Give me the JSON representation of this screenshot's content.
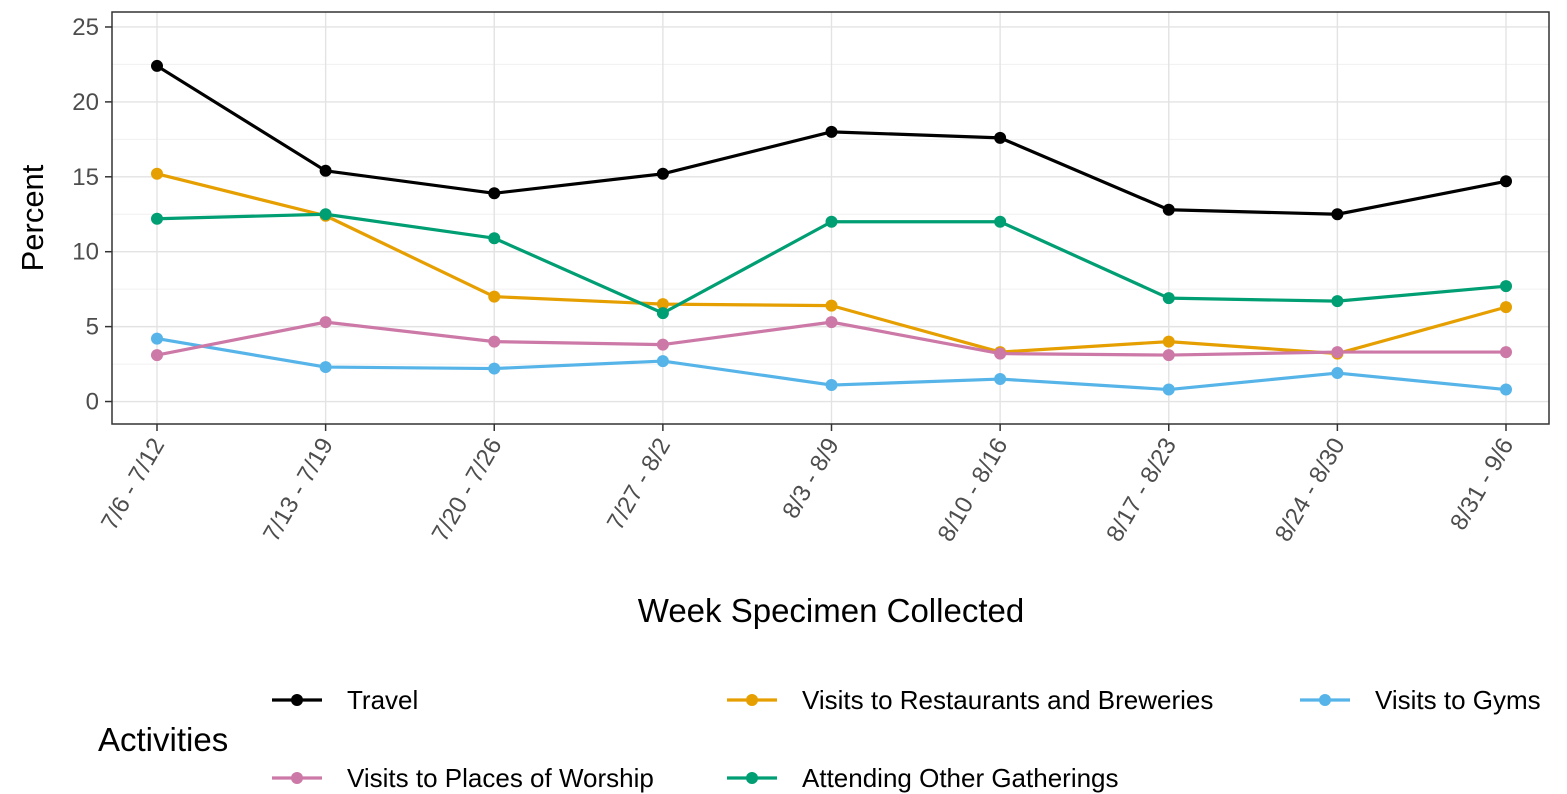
{
  "chart_data": {
    "type": "line",
    "title": "",
    "xlabel": "Week Specimen Collected",
    "ylabel": "Percent",
    "ylim": [
      -1.5,
      26
    ],
    "yticks": [
      0,
      5,
      10,
      15,
      20,
      25
    ],
    "categories": [
      "7/6 - 7/12",
      "7/13 - 7/19",
      "7/20 - 7/26",
      "7/27 - 8/2",
      "8/3 - 8/9",
      "8/10 - 8/16",
      "8/17 - 8/23",
      "8/24 - 8/30",
      "8/31 - 9/6"
    ],
    "grid": true,
    "legend_title": "Activities",
    "legend_position": "bottom",
    "series": [
      {
        "name": "Travel",
        "color": "#000000",
        "values": [
          22.4,
          15.4,
          13.9,
          15.2,
          18.0,
          17.6,
          12.8,
          12.5,
          14.7
        ]
      },
      {
        "name": "Visits to Restaurants and Breweries",
        "color": "#E69F00",
        "values": [
          15.2,
          12.4,
          7.0,
          6.5,
          6.4,
          3.3,
          4.0,
          3.2,
          6.3
        ]
      },
      {
        "name": "Visits to Gyms",
        "color": "#56B4E9",
        "values": [
          4.2,
          2.3,
          2.2,
          2.7,
          1.1,
          1.5,
          0.8,
          1.9,
          0.8
        ]
      },
      {
        "name": "Visits to Places of Worship",
        "color": "#CC79A7",
        "values": [
          3.1,
          5.3,
          4.0,
          3.8,
          5.3,
          3.2,
          3.1,
          3.3,
          3.3
        ]
      },
      {
        "name": "Attending Other Gatherings",
        "color": "#009E73",
        "values": [
          12.2,
          12.5,
          10.9,
          5.9,
          12.0,
          12.0,
          6.9,
          6.7,
          7.7
        ]
      }
    ]
  }
}
